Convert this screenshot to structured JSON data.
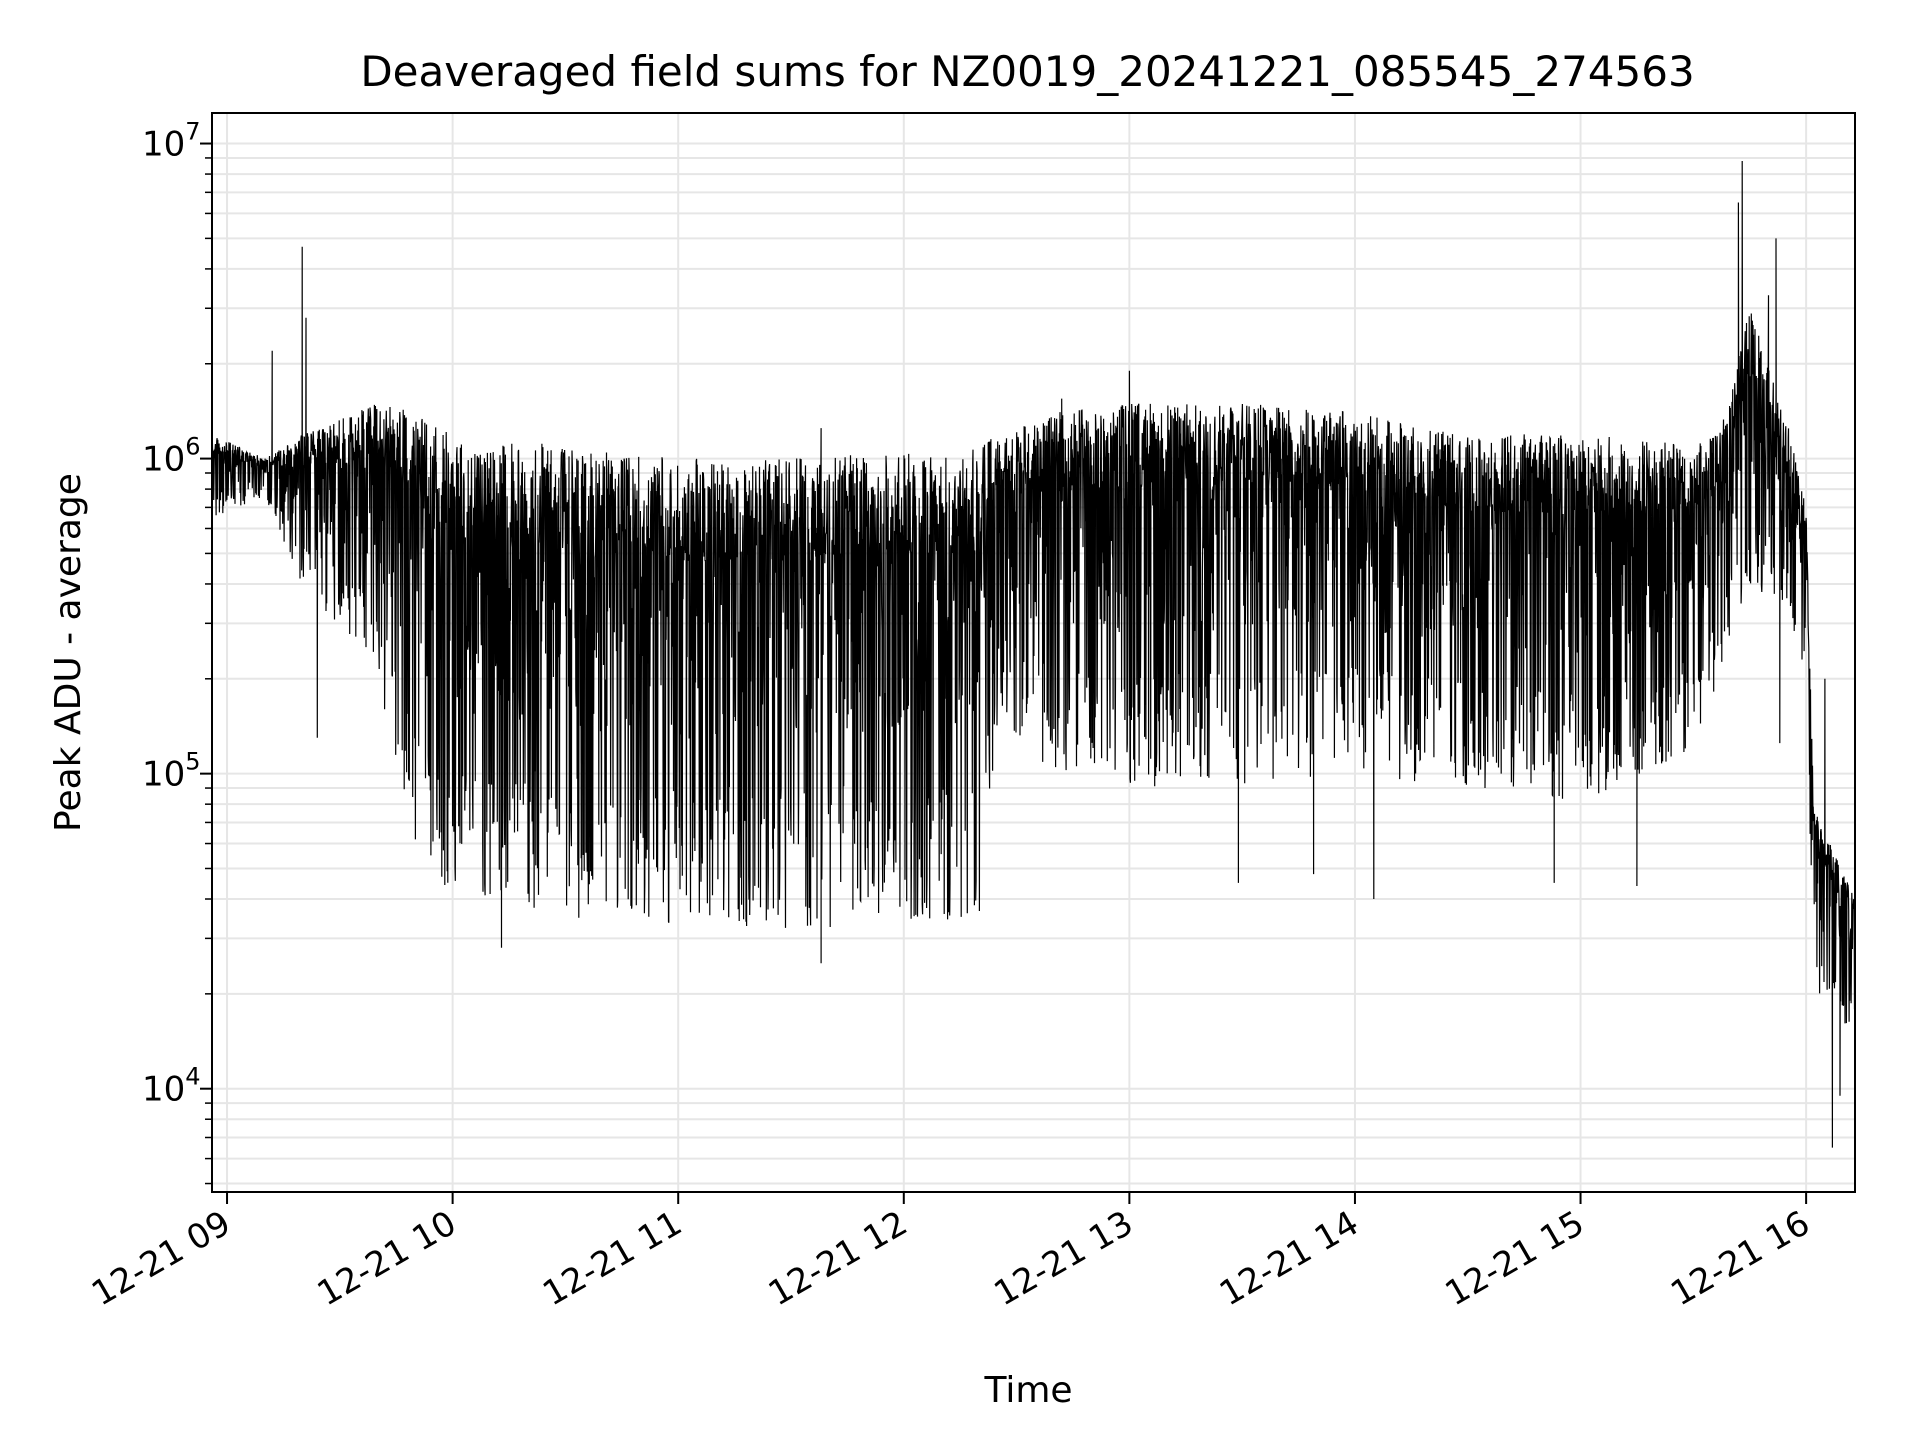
{
  "chart_data": {
    "type": "line",
    "title": "Deaveraged field sums for NZ0019_20241221_085545_274563",
    "xlabel": "Time",
    "ylabel": "Peak ADU - average",
    "yscale": "log",
    "ylim": [
      4700,
      12500000
    ],
    "xlim": [
      "12-21 08:56",
      "12-21 16:13"
    ],
    "grid": "major and minor, light gray",
    "line_color": "#000000",
    "x_ticks": [
      "12-21 09",
      "12-21 10",
      "12-21 11",
      "12-21 12",
      "12-21 13",
      "12-21 14",
      "12-21 15",
      "12-21 16"
    ],
    "y_ticks": [
      {
        "base": "10",
        "exp": "4",
        "value": 10000
      },
      {
        "base": "10",
        "exp": "5",
        "value": 100000
      },
      {
        "base": "10",
        "exp": "6",
        "value": 1000000
      },
      {
        "base": "10",
        "exp": "7",
        "value": 10000000
      }
    ],
    "series": [
      {
        "envelope": [
          {
            "t": "08:56",
            "upper": 1200000,
            "lower": 650000
          },
          {
            "t": "09:10",
            "upper": 1000000,
            "lower": 750000
          },
          {
            "t": "09:20",
            "upper": 1200000,
            "lower": 400000
          },
          {
            "t": "09:40",
            "upper": 1500000,
            "lower": 200000
          },
          {
            "t": "09:50",
            "upper": 1400000,
            "lower": 60000
          },
          {
            "t": "10:00",
            "upper": 1200000,
            "lower": 40000
          },
          {
            "t": "10:30",
            "upper": 1100000,
            "lower": 35000
          },
          {
            "t": "11:00",
            "upper": 1000000,
            "lower": 33000
          },
          {
            "t": "11:30",
            "upper": 1000000,
            "lower": 32000
          },
          {
            "t": "12:00",
            "upper": 1050000,
            "lower": 33000
          },
          {
            "t": "12:20",
            "upper": 1100000,
            "lower": 35000
          },
          {
            "t": "12:25",
            "upper": 1200000,
            "lower": 150000
          },
          {
            "t": "12:40",
            "upper": 1400000,
            "lower": 100000
          },
          {
            "t": "13:00",
            "upper": 1500000,
            "lower": 90000
          },
          {
            "t": "13:30",
            "upper": 1500000,
            "lower": 90000
          },
          {
            "t": "14:00",
            "upper": 1400000,
            "lower": 100000
          },
          {
            "t": "14:30",
            "upper": 1200000,
            "lower": 90000
          },
          {
            "t": "15:00",
            "upper": 1200000,
            "lower": 80000
          },
          {
            "t": "15:30",
            "upper": 1100000,
            "lower": 120000
          },
          {
            "t": "15:37",
            "upper": 1200000,
            "lower": 180000
          },
          {
            "t": "15:45",
            "upper": 3000000,
            "lower": 400000
          },
          {
            "t": "15:55",
            "upper": 1300000,
            "lower": 300000
          },
          {
            "t": "16:00",
            "upper": 700000,
            "lower": 200000
          },
          {
            "t": "16:02",
            "upper": 80000,
            "lower": 20000
          },
          {
            "t": "16:13",
            "upper": 40000,
            "lower": 15000
          }
        ],
        "spikes": [
          {
            "t": "09:12",
            "value": 2200000
          },
          {
            "t": "09:20",
            "value": 4700000
          },
          {
            "t": "09:21",
            "value": 2800000
          },
          {
            "t": "09:24",
            "value": 130000
          },
          {
            "t": "10:13",
            "value": 28000
          },
          {
            "t": "11:38",
            "value": 25000
          },
          {
            "t": "11:38",
            "value": 1250000
          },
          {
            "t": "12:42",
            "value": 1550000
          },
          {
            "t": "13:00",
            "value": 1900000
          },
          {
            "t": "13:29",
            "value": 45000
          },
          {
            "t": "13:49",
            "value": 48000
          },
          {
            "t": "14:05",
            "value": 40000
          },
          {
            "t": "14:53",
            "value": 45000
          },
          {
            "t": "15:15",
            "value": 44000
          },
          {
            "t": "15:42",
            "value": 6500000
          },
          {
            "t": "15:43",
            "value": 8800000
          },
          {
            "t": "15:50",
            "value": 3300000
          },
          {
            "t": "15:52",
            "value": 5000000
          },
          {
            "t": "15:53",
            "value": 125000
          },
          {
            "t": "16:05",
            "value": 200000
          },
          {
            "t": "16:07",
            "value": 6500
          },
          {
            "t": "16:09",
            "value": 9500
          }
        ]
      }
    ]
  }
}
